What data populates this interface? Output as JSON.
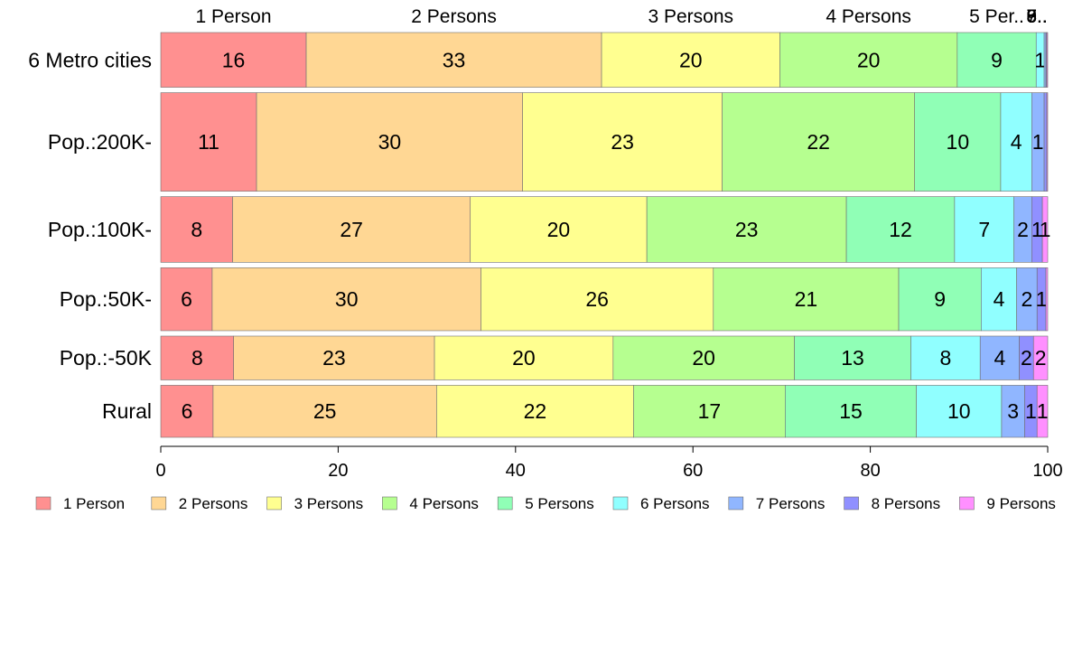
{
  "chart_data": {
    "type": "bar",
    "orientation": "horizontal",
    "stacked": true,
    "percent": true,
    "categories": [
      "6 Metro cities",
      "Pop.:200K-",
      "Pop.:100K-",
      "Pop.:50K-",
      "Pop.:-50K",
      "Rural"
    ],
    "row_weights": [
      1.0,
      1.8,
      1.2,
      1.15,
      0.8,
      0.95
    ],
    "top_labels": [
      "1 Person",
      "2 Persons",
      "3 Persons",
      "4 Persons",
      "5 Per..",
      "6..",
      "7..",
      "8..",
      "9.."
    ],
    "series": [
      {
        "name": "1 Person",
        "color": "#FF9090",
        "values": [
          16.4,
          10.8,
          8.1,
          5.8,
          8.2,
          5.9
        ]
      },
      {
        "name": "2 Persons",
        "color": "#FFD794",
        "values": [
          33.3,
          30.0,
          26.8,
          30.3,
          22.6,
          25.2
        ]
      },
      {
        "name": "3 Persons",
        "color": "#FFFF90",
        "values": [
          20.1,
          22.5,
          19.9,
          26.2,
          20.1,
          22.2
        ]
      },
      {
        "name": "4 Persons",
        "color": "#B6FF90",
        "values": [
          20.0,
          21.7,
          22.5,
          20.9,
          20.4,
          17.1
        ]
      },
      {
        "name": "5 Persons",
        "color": "#90FFB6",
        "values": [
          8.9,
          9.7,
          12.2,
          9.3,
          13.1,
          14.8
        ]
      },
      {
        "name": "6 Persons",
        "color": "#90FFFF",
        "values": [
          0.9,
          3.5,
          6.7,
          4.0,
          7.8,
          9.6
        ]
      },
      {
        "name": "7 Persons",
        "color": "#90B6FF",
        "values": [
          0.2,
          1.4,
          2.0,
          2.3,
          4.4,
          2.6
        ]
      },
      {
        "name": "8 Persons",
        "color": "#9090FF",
        "values": [
          0.1,
          0.3,
          1.2,
          1.0,
          1.6,
          1.4
        ]
      },
      {
        "name": "9 Persons",
        "color": "#FF90FF",
        "values": [
          0.1,
          0.1,
          0.6,
          0.2,
          1.6,
          1.2
        ]
      }
    ],
    "xlim": [
      0,
      100
    ],
    "xticks": [
      0,
      20,
      40,
      60,
      80,
      100
    ],
    "title": "",
    "xlabel": "",
    "ylabel": "",
    "grid": false,
    "legend_position": "bottom"
  }
}
